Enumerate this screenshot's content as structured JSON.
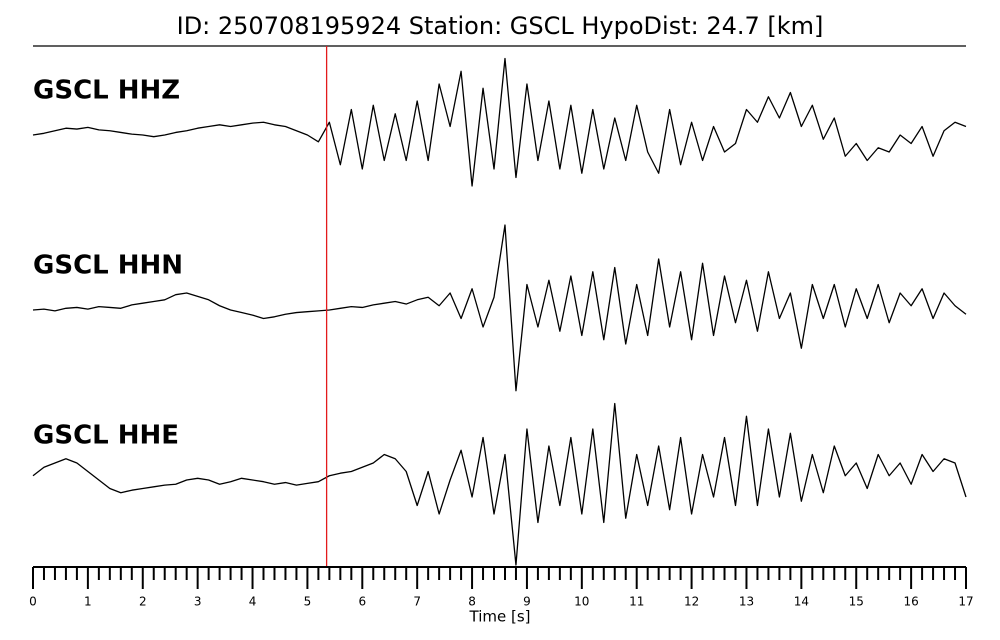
{
  "chart_data": {
    "type": "waveform",
    "title": "ID: 250708195924   Station: GSCL   HypoDist:    24.7 [km]",
    "xlabel": "Time [s]",
    "xlim": [
      0,
      17
    ],
    "xticks": [
      0,
      1,
      2,
      3,
      4,
      5,
      6,
      7,
      8,
      9,
      10,
      11,
      12,
      13,
      14,
      15,
      16,
      17
    ],
    "xminor_ticks": [
      0.2,
      0.4,
      0.6,
      0.8,
      1.2,
      1.4,
      1.6,
      1.8,
      2.2,
      2.4,
      2.6,
      2.8,
      3.2,
      3.4,
      3.6,
      3.8,
      4.2,
      4.4,
      4.6,
      4.8,
      5.2,
      5.4,
      5.6,
      5.8,
      6.2,
      6.4,
      6.6,
      6.8,
      7.2,
      7.4,
      7.6,
      7.8,
      8.2,
      8.4,
      8.6,
      8.8,
      9.2,
      9.4,
      9.6,
      9.8,
      10.2,
      10.4,
      10.6,
      10.8,
      11.2,
      11.4,
      11.6,
      11.8,
      12.2,
      12.4,
      12.6,
      12.8,
      13.2,
      13.4,
      13.6,
      13.8,
      14.2,
      14.4,
      14.6,
      14.8,
      15.2,
      15.4,
      15.6,
      15.8,
      16.2,
      16.4,
      16.6,
      16.8
    ],
    "ylim": [
      -1,
      1
    ],
    "pick": {
      "x": 5.35,
      "color": "#e31a1c"
    },
    "label_color": "#4c9a0a",
    "x": [
      0,
      0.2,
      0.4,
      0.6,
      0.8,
      1,
      1.2,
      1.4,
      1.6,
      1.8,
      2,
      2.2,
      2.4,
      2.6,
      2.8,
      3,
      3.2,
      3.4,
      3.6,
      3.8,
      4,
      4.2,
      4.4,
      4.6,
      4.8,
      5,
      5.2,
      5.4,
      5.6,
      5.8,
      6,
      6.2,
      6.4,
      6.6,
      6.8,
      7,
      7.2,
      7.4,
      7.6,
      7.8,
      8,
      8.2,
      8.4,
      8.6,
      8.8,
      9,
      9.2,
      9.4,
      9.6,
      9.8,
      10,
      10.2,
      10.4,
      10.6,
      10.8,
      11,
      11.2,
      11.4,
      11.6,
      11.8,
      12,
      12.2,
      12.4,
      12.6,
      12.8,
      13,
      13.2,
      13.4,
      13.6,
      13.8,
      14,
      14.2,
      14.4,
      14.6,
      14.8,
      15,
      15.2,
      15.4,
      15.6,
      15.8,
      16,
      16.2,
      16.4,
      16.6,
      16.8,
      17
    ],
    "series": [
      {
        "name": "GSCL HHZ",
        "color": "#000000",
        "values": [
          0,
          0.02,
          0.05,
          0.08,
          0.07,
          0.09,
          0.06,
          0.05,
          0.03,
          0.01,
          0,
          -0.02,
          0,
          0.03,
          0.05,
          0.08,
          0.1,
          0.12,
          0.1,
          0.12,
          0.14,
          0.15,
          0.12,
          0.1,
          0.05,
          0,
          -0.08,
          0.15,
          -0.35,
          0.3,
          -0.4,
          0.35,
          -0.3,
          0.25,
          -0.3,
          0.4,
          -0.3,
          0.6,
          0.1,
          0.75,
          -0.6,
          0.55,
          -0.4,
          0.9,
          -0.5,
          0.6,
          -0.3,
          0.4,
          -0.4,
          0.35,
          -0.45,
          0.3,
          -0.4,
          0.2,
          -0.3,
          0.35,
          -0.2,
          -0.45,
          0.3,
          -0.35,
          0.15,
          -0.3,
          0.1,
          -0.2,
          -0.1,
          0.3,
          0.15,
          0.45,
          0.2,
          0.5,
          0.1,
          0.35,
          -0.05,
          0.2,
          -0.25,
          -0.1,
          -0.3,
          -0.15,
          -0.2,
          0,
          -0.1,
          0.1,
          -0.25,
          0.05,
          0.15,
          0.1
        ]
      },
      {
        "name": "GSCL HHN",
        "color": "#000000",
        "values": [
          0,
          0.01,
          -0.01,
          0.02,
          0.03,
          0.01,
          0.04,
          0.03,
          0.02,
          0.06,
          0.08,
          0.1,
          0.12,
          0.18,
          0.2,
          0.16,
          0.12,
          0.05,
          0,
          -0.03,
          -0.06,
          -0.1,
          -0.08,
          -0.05,
          -0.03,
          -0.02,
          -0.01,
          0,
          0.02,
          0.04,
          0.03,
          0.06,
          0.08,
          0.1,
          0.07,
          0.12,
          0.15,
          0.05,
          0.2,
          -0.1,
          0.25,
          -0.2,
          0.15,
          1.0,
          -0.95,
          0.3,
          -0.2,
          0.35,
          -0.25,
          0.4,
          -0.3,
          0.45,
          -0.35,
          0.5,
          -0.4,
          0.3,
          -0.3,
          0.6,
          -0.2,
          0.45,
          -0.35,
          0.55,
          -0.3,
          0.4,
          -0.15,
          0.35,
          -0.25,
          0.45,
          -0.1,
          0.2,
          -0.45,
          0.3,
          -0.1,
          0.3,
          -0.2,
          0.25,
          -0.1,
          0.3,
          -0.15,
          0.2,
          0.05,
          0.25,
          -0.1,
          0.2,
          0.05,
          -0.05
        ]
      },
      {
        "name": "GSCL HHE",
        "color": "#000000",
        "values": [
          0.05,
          0.15,
          0.2,
          0.25,
          0.2,
          0.1,
          0,
          -0.1,
          -0.15,
          -0.12,
          -0.1,
          -0.08,
          -0.06,
          -0.05,
          0,
          0.02,
          0,
          -0.05,
          -0.02,
          0.02,
          0,
          -0.02,
          -0.05,
          -0.03,
          -0.06,
          -0.04,
          -0.02,
          0.05,
          0.08,
          0.1,
          0.15,
          0.2,
          0.3,
          0.25,
          0.1,
          -0.3,
          0.1,
          -0.4,
          0,
          0.35,
          -0.2,
          0.5,
          -0.4,
          0.3,
          -1.0,
          0.6,
          -0.5,
          0.4,
          -0.3,
          0.5,
          -0.4,
          0.6,
          -0.5,
          0.9,
          -0.45,
          0.3,
          -0.3,
          0.4,
          -0.35,
          0.5,
          -0.4,
          0.3,
          -0.2,
          0.5,
          -0.3,
          0.75,
          -0.3,
          0.6,
          -0.2,
          0.55,
          -0.25,
          0.3,
          -0.15,
          0.4,
          0.05,
          0.2,
          -0.1,
          0.3,
          0.05,
          0.2,
          -0.05,
          0.3,
          0.1,
          0.25,
          0.2,
          -0.2
        ]
      }
    ]
  }
}
